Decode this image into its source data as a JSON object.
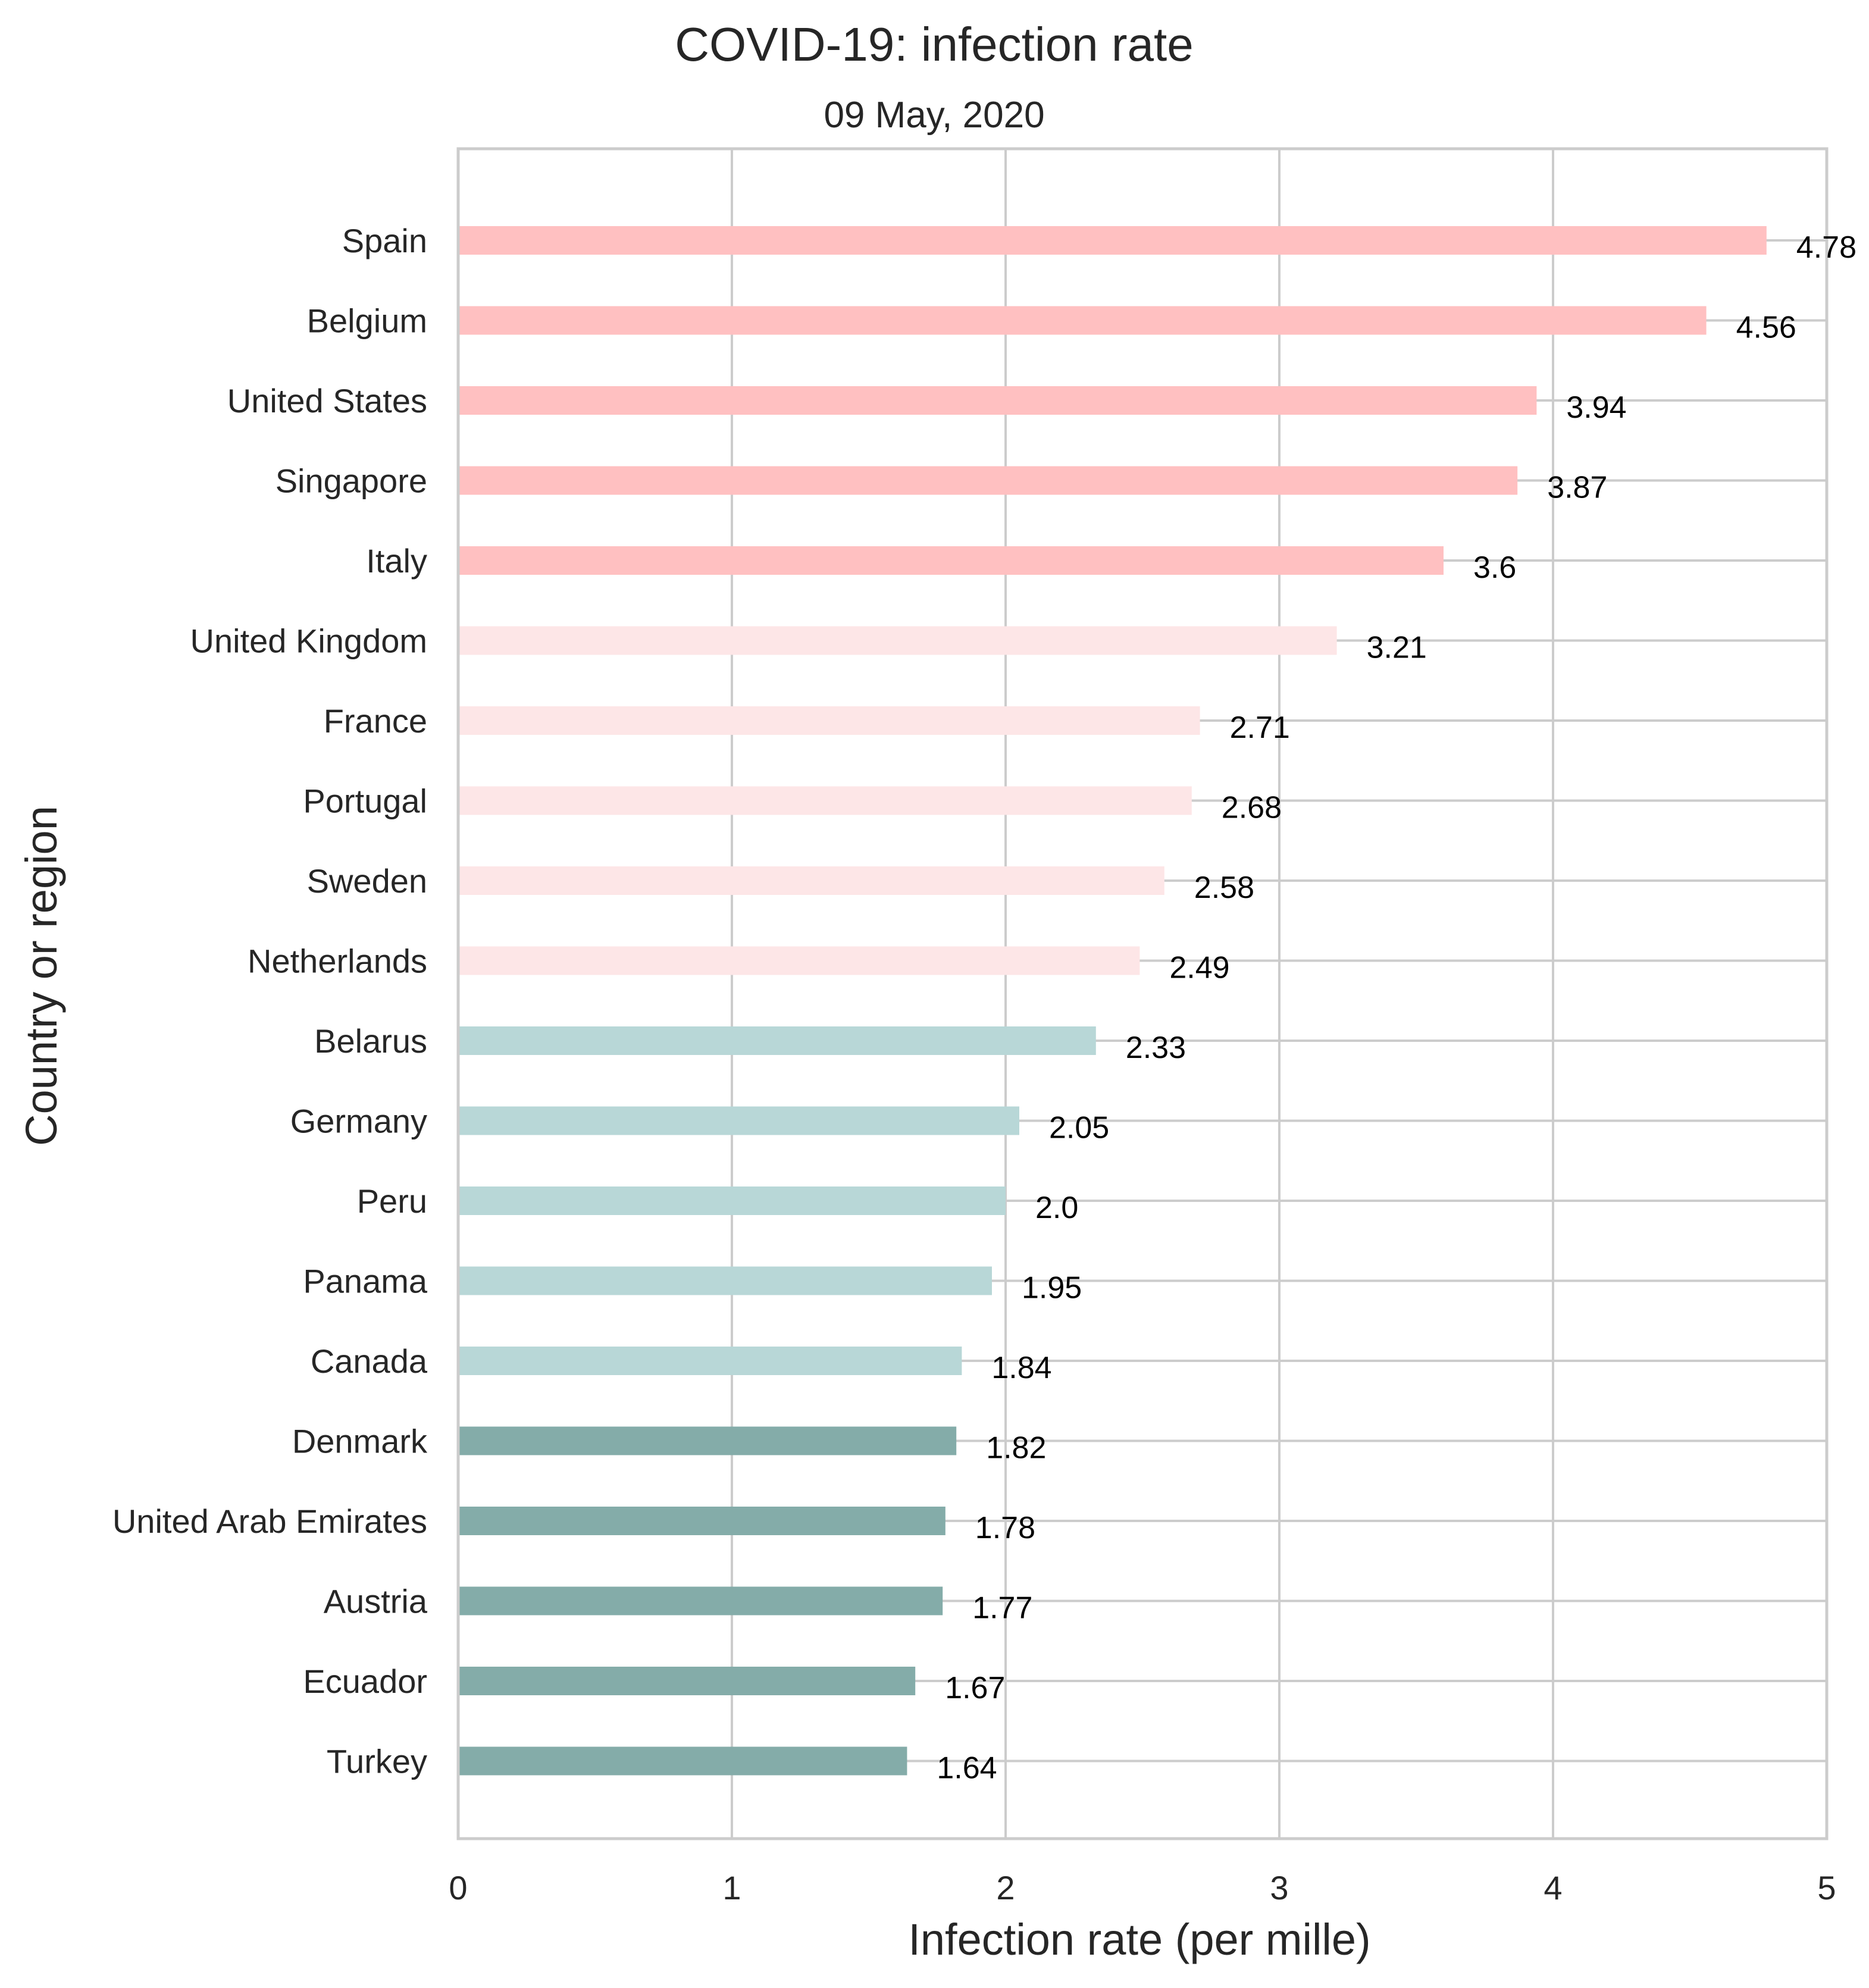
{
  "chart_data": {
    "type": "bar",
    "orientation": "horizontal",
    "title": "COVID-19: infection rate",
    "subtitle": "09 May, 2020",
    "xlabel": "Infection rate (per mille)",
    "ylabel": "Country or region",
    "xlim": [
      0,
      5
    ],
    "xticks": [
      "0",
      "1",
      "2",
      "3",
      "4",
      "5"
    ],
    "grid": true,
    "categories": [
      "Spain",
      "Belgium",
      "United States",
      "Singapore",
      "Italy",
      "United Kingdom",
      "France",
      "Portugal",
      "Sweden",
      "Netherlands",
      "Belarus",
      "Germany",
      "Peru",
      "Panama",
      "Canada",
      "Denmark",
      "United Arab Emirates",
      "Austria",
      "Ecuador",
      "Turkey"
    ],
    "values": [
      4.78,
      4.56,
      3.94,
      3.87,
      3.6,
      3.21,
      2.71,
      2.68,
      2.58,
      2.49,
      2.33,
      2.05,
      2.0,
      1.95,
      1.84,
      1.82,
      1.78,
      1.77,
      1.67,
      1.64
    ],
    "value_labels": [
      "4.78",
      "4.56",
      "3.94",
      "3.87",
      "3.6",
      "3.21",
      "2.71",
      "2.68",
      "2.58",
      "2.49",
      "2.33",
      "2.05",
      "2.0",
      "1.95",
      "1.84",
      "1.82",
      "1.78",
      "1.77",
      "1.67",
      "1.64"
    ],
    "bar_colors": [
      "#ffc0c1",
      "#ffc0c1",
      "#ffc0c1",
      "#ffc0c1",
      "#ffc0c1",
      "#fde6e7",
      "#fde6e7",
      "#fde6e7",
      "#fde6e7",
      "#fde6e7",
      "#b8d7d7",
      "#b8d7d7",
      "#b8d7d7",
      "#b8d7d7",
      "#b8d7d7",
      "#84aca9",
      "#84aca9",
      "#84aca9",
      "#84aca9",
      "#84aca9"
    ],
    "colors": {
      "grid": "#cccccc",
      "frame": "#cccccc",
      "text": "#262626"
    }
  }
}
